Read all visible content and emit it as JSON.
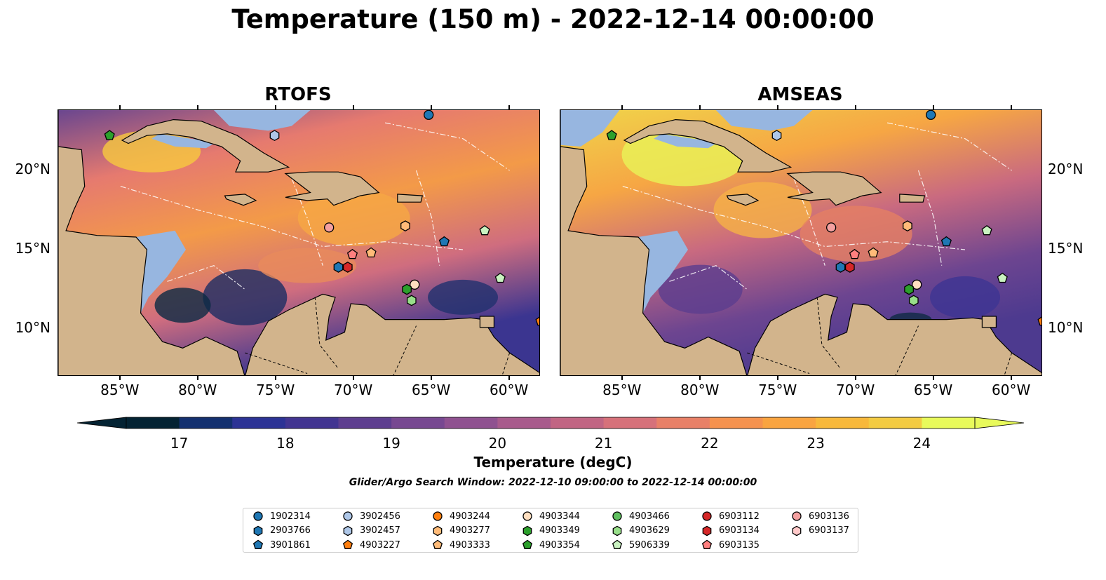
{
  "title": "Temperature (150 m) - 2022-12-14 00:00:00",
  "panels": [
    {
      "title": "RTOFS"
    },
    {
      "title": "AMSEAS"
    }
  ],
  "axes": {
    "lon_ticks": [
      "85°W",
      "80°W",
      "75°W",
      "70°W",
      "65°W",
      "60°W"
    ],
    "lat_ticks": [
      "20°N",
      "15°N",
      "10°N"
    ],
    "lon_range": [
      -89,
      -58
    ],
    "lat_range": [
      7,
      23.8
    ]
  },
  "colorbar": {
    "label": "Temperature (degC)",
    "ticks": [
      "17",
      "18",
      "19",
      "20",
      "21",
      "22",
      "23",
      "24"
    ],
    "range": [
      16.5,
      24.5
    ],
    "colors": [
      "#042333",
      "#13306f",
      "#2c3395",
      "#423591",
      "#5d3e8f",
      "#774891",
      "#8f5190",
      "#a85b8c",
      "#c16583",
      "#d6717a",
      "#e88067",
      "#f5924e",
      "#f9a440",
      "#f7b83b",
      "#f3cb42",
      "#e8fa5b"
    ],
    "extend": "both"
  },
  "search_window": "Glider/Argo Search Window: 2022-12-10 09:00:00 to 2022-12-14 00:00:00",
  "legend": [
    {
      "id": "1902314",
      "color": "#1f77b4",
      "marker": "circle"
    },
    {
      "id": "2903766",
      "color": "#1f77b4",
      "marker": "hexagon"
    },
    {
      "id": "3901861",
      "color": "#1f77b4",
      "marker": "pentagon"
    },
    {
      "id": "3902456",
      "color": "#aec7e8",
      "marker": "circle"
    },
    {
      "id": "3902457",
      "color": "#aec7e8",
      "marker": "hexagon"
    },
    {
      "id": "4903227",
      "color": "#ff7f0e",
      "marker": "pentagon"
    },
    {
      "id": "4903244",
      "color": "#ff7f0e",
      "marker": "circle"
    },
    {
      "id": "4903277",
      "color": "#ffbb78",
      "marker": "hexagon"
    },
    {
      "id": "4903333",
      "color": "#ffbb78",
      "marker": "pentagon"
    },
    {
      "id": "4903344",
      "color": "#ffdfc0",
      "marker": "circle"
    },
    {
      "id": "4903349",
      "color": "#2ca02c",
      "marker": "hexagon"
    },
    {
      "id": "4903354",
      "color": "#2ca02c",
      "marker": "pentagon"
    },
    {
      "id": "4903466",
      "color": "#5fbf5f",
      "marker": "circle"
    },
    {
      "id": "4903629",
      "color": "#98df8a",
      "marker": "hexagon"
    },
    {
      "id": "5906339",
      "color": "#c9f2c0",
      "marker": "pentagon"
    },
    {
      "id": "6903112",
      "color": "#d62728",
      "marker": "circle"
    },
    {
      "id": "6903134",
      "color": "#d62728",
      "marker": "hexagon"
    },
    {
      "id": "6903135",
      "color": "#ff7f7f",
      "marker": "pentagon"
    },
    {
      "id": "6903136",
      "color": "#f4a0a0",
      "marker": "circle"
    },
    {
      "id": "6903137",
      "color": "#ffc9c9",
      "marker": "hexagon"
    }
  ],
  "floats": [
    {
      "id": "1902314",
      "lon": -65.2,
      "lat": 23.5
    },
    {
      "id": "4903354",
      "lon": -85.7,
      "lat": 22.2
    },
    {
      "id": "3902457",
      "lon": -75.1,
      "lat": 22.2
    },
    {
      "id": "6903136",
      "lon": -71.6,
      "lat": 16.4
    },
    {
      "id": "4903277",
      "lon": -66.7,
      "lat": 16.5
    },
    {
      "id": "3901861",
      "lon": -64.2,
      "lat": 15.5
    },
    {
      "id": "5906339",
      "lon": -61.6,
      "lat": 16.2
    },
    {
      "id": "6903135",
      "lon": -70.1,
      "lat": 14.7
    },
    {
      "id": "4903333",
      "lon": -68.9,
      "lat": 14.8
    },
    {
      "id": "2903766",
      "lon": -71.0,
      "lat": 13.9
    },
    {
      "id": "6903134",
      "lon": -70.4,
      "lat": 13.9
    },
    {
      "id": "4903344",
      "lon": -66.1,
      "lat": 12.8
    },
    {
      "id": "4903349",
      "lon": -66.6,
      "lat": 12.5
    },
    {
      "id": "4903629",
      "lon": -66.3,
      "lat": 11.8
    },
    {
      "id": "5906339",
      "lon": -60.6,
      "lat": 13.2
    },
    {
      "id": "4903227",
      "lon": -58.0,
      "lat": 10.5
    }
  ]
}
